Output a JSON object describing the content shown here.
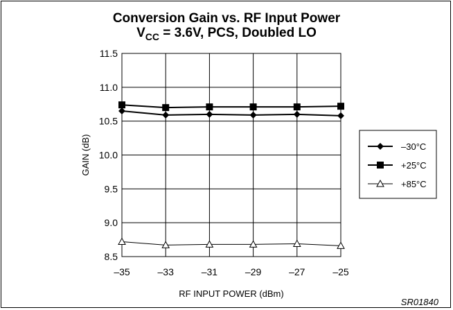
{
  "title_line1": "Conversion Gain vs. RF Input Power",
  "title_line2_prefix": "V",
  "title_line2_sub": "CC",
  "title_line2_rest": " = 3.6V, PCS, Doubled LO",
  "figure_code": "SR01840",
  "chart_data": {
    "type": "line",
    "title": "Conversion Gain vs. RF Input Power",
    "subtitle": "VCC = 3.6V, PCS, Doubled LO",
    "xlabel": "RF INPUT POWER (dBm)",
    "ylabel": "GAIN (dB)",
    "xlim": [
      -35,
      -25
    ],
    "ylim": [
      8.5,
      11.5
    ],
    "x_ticks": [
      "–35",
      "–33",
      "–31",
      "–29",
      "–27",
      "–25"
    ],
    "y_ticks": [
      "11.5",
      "11.0",
      "10.5",
      "10.0",
      "9.5",
      "9.0",
      "8.5"
    ],
    "x": [
      -35,
      -33,
      -31,
      -29,
      -27,
      -25
    ],
    "grid": true,
    "legend_position": "right",
    "series": [
      {
        "name": "–30°C",
        "marker": "diamond",
        "color": "#000000",
        "values": [
          10.65,
          10.59,
          10.6,
          10.59,
          10.6,
          10.58
        ]
      },
      {
        "name": "+25°C",
        "marker": "square",
        "color": "#000000",
        "values": [
          10.74,
          10.7,
          10.71,
          10.71,
          10.71,
          10.72
        ]
      },
      {
        "name": "+85°C",
        "marker": "triangle",
        "color": "#000000",
        "values": [
          8.72,
          8.67,
          8.68,
          8.68,
          8.69,
          8.66
        ]
      }
    ]
  }
}
